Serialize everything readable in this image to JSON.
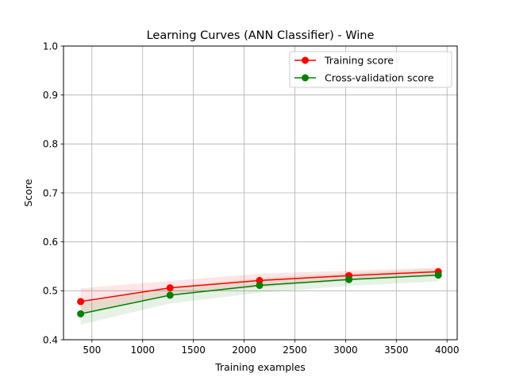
{
  "chart_data": {
    "type": "line",
    "title": "Learning Curves (ANN Classifier) - Wine",
    "xlabel": "Training examples",
    "ylabel": "Score",
    "xlim": [
      220,
      4100
    ],
    "ylim": [
      0.4,
      1.0
    ],
    "xticks": [
      500,
      1000,
      1500,
      2000,
      2500,
      3000,
      3500,
      4000
    ],
    "yticks": [
      0.4,
      0.5,
      0.6,
      0.7,
      0.8,
      0.9,
      1.0
    ],
    "xtick_labels": [
      "500",
      "1000",
      "1500",
      "2000",
      "2500",
      "3000",
      "3500",
      "4000"
    ],
    "ytick_labels": [
      "0.4",
      "0.5",
      "0.6",
      "0.7",
      "0.8",
      "0.9",
      "1.0"
    ],
    "grid": true,
    "legend_position": "top-right",
    "x": [
      389,
      1270,
      2152,
      3033,
      3914
    ],
    "series": [
      {
        "name": "Training score",
        "color": "#ff0000",
        "values": [
          0.478,
          0.506,
          0.521,
          0.531,
          0.539
        ],
        "band_upper": [
          0.505,
          0.52,
          0.535,
          0.541,
          0.547
        ],
        "band_lower": [
          0.451,
          0.492,
          0.507,
          0.521,
          0.531
        ]
      },
      {
        "name": "Cross-validation score",
        "color": "#008000",
        "values": [
          0.453,
          0.491,
          0.511,
          0.523,
          0.532
        ],
        "band_upper": [
          0.475,
          0.508,
          0.526,
          0.536,
          0.545
        ],
        "band_lower": [
          0.431,
          0.474,
          0.496,
          0.51,
          0.519
        ]
      }
    ]
  }
}
